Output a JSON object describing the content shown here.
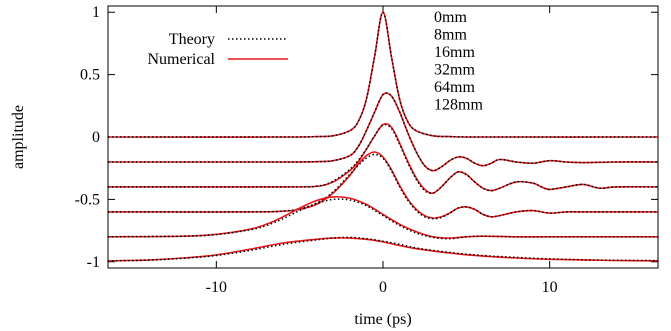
{
  "chart_data": {
    "type": "line",
    "xlabel": "time (ps)",
    "ylabel": "amplitude",
    "xlim": [
      -16.5,
      16.5
    ],
    "ylim": [
      -1.05,
      1.05
    ],
    "xticks": [
      -10,
      0,
      10
    ],
    "xtick_labels": [
      "-10",
      "0",
      "10"
    ],
    "yticks": [
      1,
      0.5,
      0,
      -0.5,
      -1
    ],
    "ytick_labels": [
      "1",
      "0.5",
      "0",
      "-0.5",
      "-1"
    ],
    "grid": false,
    "legend": {
      "placement": "top-left",
      "entries": [
        {
          "label": "Theory",
          "style": "dotted",
          "color": "#000000"
        },
        {
          "label": "Numerical",
          "style": "solid",
          "color": "#e8161b"
        }
      ]
    },
    "annotations": [
      "0mm",
      "8mm",
      "16mm",
      "32mm",
      "64mm",
      "128mm"
    ],
    "colors": {
      "theory": "#000000",
      "numerical": "#e8161b"
    },
    "curves": [
      {
        "distance": "0mm",
        "x": [
          -16.5,
          -6,
          -4,
          -3,
          -2,
          -1.5,
          -1,
          -0.5,
          0,
          0.5,
          1,
          1.5,
          2,
          3,
          4,
          6,
          16.5
        ],
        "numerical": [
          0,
          0,
          0.003,
          0.01,
          0.05,
          0.12,
          0.3,
          0.65,
          1.0,
          0.65,
          0.3,
          0.12,
          0.05,
          0.01,
          0.003,
          0,
          0
        ],
        "theory": [
          0,
          0,
          0.003,
          0.01,
          0.05,
          0.12,
          0.3,
          0.65,
          1.0,
          0.65,
          0.3,
          0.12,
          0.05,
          0.01,
          0.003,
          0,
          0
        ]
      },
      {
        "distance": "8mm",
        "x": [
          -16.5,
          -6,
          -4,
          -3,
          -2,
          -1.5,
          -1,
          -0.5,
          0,
          0.5,
          1,
          1.5,
          2,
          2.5,
          3,
          3.5,
          4,
          4.5,
          5,
          5.5,
          6,
          6.5,
          7,
          8,
          9,
          10,
          11,
          12,
          14,
          16.5
        ],
        "numerical": [
          -0.2,
          -0.2,
          -0.198,
          -0.19,
          -0.15,
          -0.08,
          0.05,
          0.2,
          0.34,
          0.33,
          0.2,
          0.03,
          -0.12,
          -0.23,
          -0.27,
          -0.24,
          -0.19,
          -0.16,
          -0.17,
          -0.21,
          -0.23,
          -0.21,
          -0.18,
          -0.2,
          -0.21,
          -0.19,
          -0.2,
          -0.205,
          -0.2,
          -0.2
        ],
        "theory": [
          -0.2,
          -0.2,
          -0.198,
          -0.19,
          -0.15,
          -0.08,
          0.05,
          0.2,
          0.34,
          0.33,
          0.2,
          0.03,
          -0.12,
          -0.23,
          -0.27,
          -0.24,
          -0.19,
          -0.16,
          -0.17,
          -0.21,
          -0.23,
          -0.21,
          -0.18,
          -0.2,
          -0.21,
          -0.19,
          -0.2,
          -0.205,
          -0.2,
          -0.2
        ]
      },
      {
        "distance": "16mm",
        "x": [
          -16.5,
          -6,
          -4,
          -3,
          -2,
          -1.5,
          -1,
          -0.5,
          0,
          0.5,
          1,
          1.5,
          2,
          2.5,
          3,
          3.5,
          4,
          4.5,
          5,
          5.5,
          6,
          6.5,
          7,
          8,
          9,
          9.5,
          10,
          11,
          12,
          13,
          14,
          16.5
        ],
        "numerical": [
          -0.4,
          -0.4,
          -0.395,
          -0.36,
          -0.27,
          -0.2,
          -0.1,
          0.01,
          0.1,
          0.08,
          -0.05,
          -0.2,
          -0.33,
          -0.42,
          -0.45,
          -0.4,
          -0.33,
          -0.28,
          -0.3,
          -0.36,
          -0.41,
          -0.43,
          -0.41,
          -0.36,
          -0.37,
          -0.4,
          -0.42,
          -0.4,
          -0.38,
          -0.41,
          -0.4,
          -0.4
        ],
        "theory": [
          -0.4,
          -0.4,
          -0.394,
          -0.355,
          -0.26,
          -0.19,
          -0.095,
          0.01,
          0.095,
          0.07,
          -0.06,
          -0.21,
          -0.34,
          -0.43,
          -0.45,
          -0.4,
          -0.33,
          -0.28,
          -0.3,
          -0.36,
          -0.41,
          -0.43,
          -0.41,
          -0.36,
          -0.37,
          -0.4,
          -0.42,
          -0.4,
          -0.38,
          -0.41,
          -0.4,
          -0.4
        ]
      },
      {
        "distance": "32mm",
        "x": [
          -16.5,
          -8,
          -6,
          -5,
          -4,
          -3,
          -2,
          -1.5,
          -1,
          -0.5,
          0,
          0.5,
          1,
          1.5,
          2,
          2.5,
          3,
          3.5,
          4,
          4.5,
          5,
          5.5,
          6,
          6.5,
          7,
          8,
          9,
          10,
          11,
          12,
          16.5
        ],
        "numerical": [
          -0.6,
          -0.6,
          -0.595,
          -0.58,
          -0.54,
          -0.45,
          -0.31,
          -0.22,
          -0.15,
          -0.12,
          -0.16,
          -0.26,
          -0.39,
          -0.5,
          -0.58,
          -0.63,
          -0.65,
          -0.64,
          -0.61,
          -0.57,
          -0.56,
          -0.58,
          -0.62,
          -0.64,
          -0.63,
          -0.6,
          -0.59,
          -0.61,
          -0.6,
          -0.6,
          -0.6
        ],
        "theory": [
          -0.6,
          -0.6,
          -0.594,
          -0.575,
          -0.53,
          -0.44,
          -0.3,
          -0.23,
          -0.17,
          -0.14,
          -0.17,
          -0.27,
          -0.4,
          -0.51,
          -0.59,
          -0.64,
          -0.655,
          -0.645,
          -0.61,
          -0.57,
          -0.56,
          -0.58,
          -0.62,
          -0.64,
          -0.63,
          -0.6,
          -0.59,
          -0.61,
          -0.6,
          -0.6,
          -0.6
        ]
      },
      {
        "distance": "64mm",
        "x": [
          -16.5,
          -12,
          -10,
          -8,
          -7,
          -6,
          -5,
          -4,
          -3,
          -2,
          -1,
          0,
          1,
          2,
          3,
          4,
          5,
          6,
          8,
          10,
          12,
          16.5
        ],
        "numerical": [
          -0.8,
          -0.795,
          -0.78,
          -0.74,
          -0.7,
          -0.64,
          -0.57,
          -0.51,
          -0.48,
          -0.49,
          -0.54,
          -0.62,
          -0.7,
          -0.76,
          -0.8,
          -0.81,
          -0.8,
          -0.795,
          -0.8,
          -0.8,
          -0.8,
          -0.8
        ],
        "theory": [
          -0.8,
          -0.795,
          -0.782,
          -0.745,
          -0.71,
          -0.655,
          -0.59,
          -0.535,
          -0.5,
          -0.505,
          -0.55,
          -0.63,
          -0.71,
          -0.77,
          -0.805,
          -0.815,
          -0.8,
          -0.795,
          -0.8,
          -0.8,
          -0.8,
          -0.8
        ]
      },
      {
        "distance": "128mm",
        "x": [
          -16.5,
          -14,
          -12,
          -10,
          -8,
          -6,
          -4,
          -3,
          -2,
          -1,
          0,
          1,
          2,
          4,
          6,
          8,
          10,
          12,
          14,
          16.5
        ],
        "numerical": [
          -0.993,
          -0.985,
          -0.97,
          -0.945,
          -0.9,
          -0.85,
          -0.82,
          -0.81,
          -0.81,
          -0.82,
          -0.84,
          -0.87,
          -0.895,
          -0.93,
          -0.955,
          -0.97,
          -0.98,
          -0.985,
          -0.99,
          -0.992
        ],
        "theory": [
          -0.993,
          -0.987,
          -0.972,
          -0.95,
          -0.91,
          -0.86,
          -0.825,
          -0.81,
          -0.805,
          -0.815,
          -0.835,
          -0.86,
          -0.89,
          -0.925,
          -0.95,
          -0.965,
          -0.977,
          -0.984,
          -0.988,
          -0.991
        ]
      }
    ]
  }
}
